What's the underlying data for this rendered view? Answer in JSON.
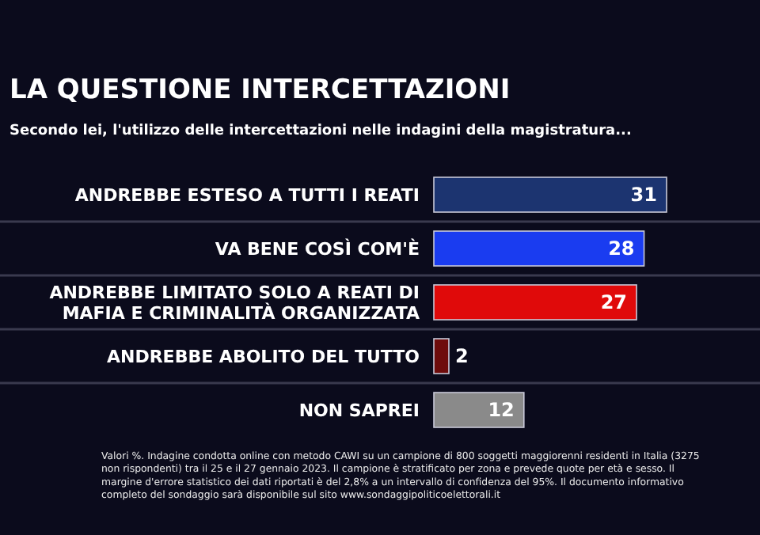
{
  "chart_data": {
    "type": "bar",
    "orientation": "horizontal",
    "title": "LA QUESTIONE INTERCETTAZIONI",
    "subtitle": "Secondo lei, l'utilizzo delle intercettazioni nelle indagini della magistratura...",
    "categories": [
      "ANDREBBE ESTESO A TUTTI I REATI",
      "VA BENE COSÌ COM'È",
      "ANDREBBE LIMITATO SOLO A REATI DI MAFIA E CRIMINALITÀ ORGANIZZATA",
      "ANDREBBE ABOLITO DEL TUTTO",
      "NON SAPREI"
    ],
    "values": [
      31,
      28,
      27,
      2,
      12
    ],
    "colors": [
      "#1c3470",
      "#1a3cf0",
      "#e00a0a",
      "#6e0c0c",
      "#8a8a8a"
    ],
    "data_labels": true,
    "grid": true,
    "annotations": [
      "Valori %. Indagine condotta online con metodo CAWI su un campione di 800 soggetti maggiorenni residenti in Italia (3275 non rispondenti) tra il 25 e il 27 gennaio 2023. Il campione è stratificato per zona e prevede quote per età e sesso. Il margine d'errore statistico dei dati riportati è del 2,8% a un intervallo di confidenza del 95%. Il documento informativo completo del sondaggio sarà disponibile sul sito www.sondaggipoliticoelettorali.it"
    ]
  }
}
